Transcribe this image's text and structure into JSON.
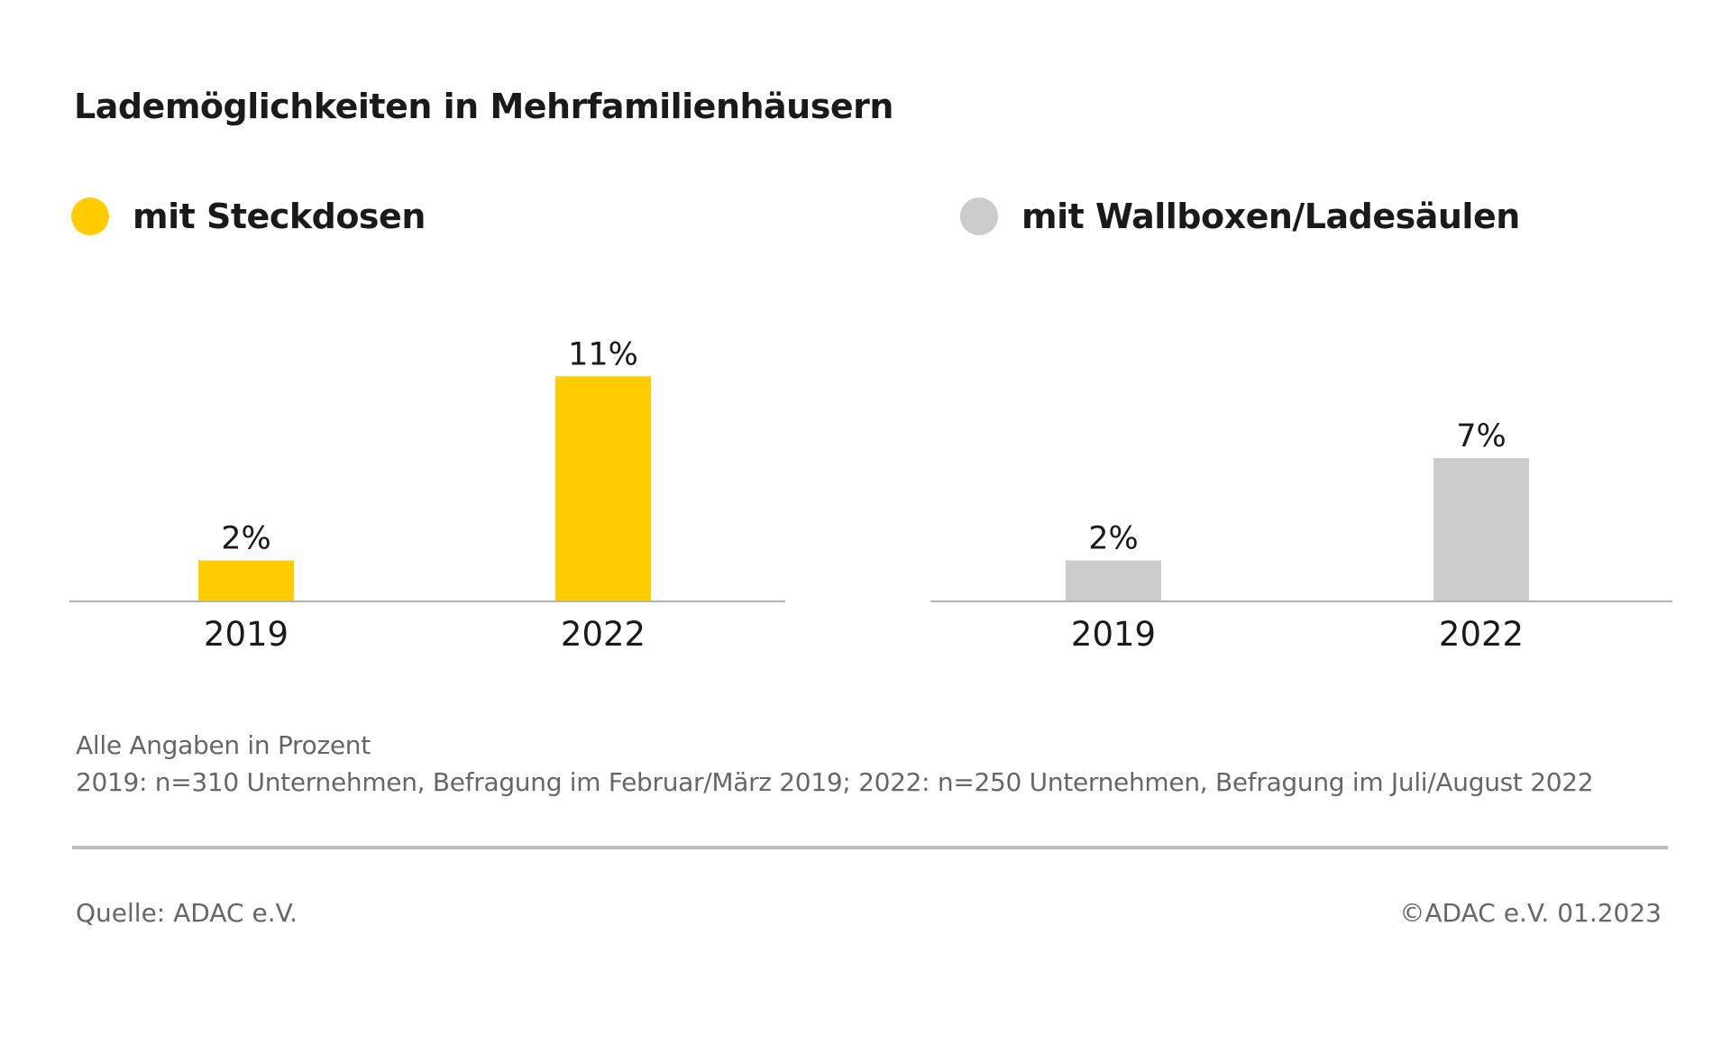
{
  "title": "Lademöglichkeiten in Mehrfamilienhäusern",
  "chart_data": [
    {
      "type": "bar",
      "series_name": "mit Steckdosen",
      "color": "#FFCC00",
      "categories": [
        "2019",
        "2022"
      ],
      "values": [
        2,
        11
      ],
      "value_labels": [
        "2%",
        "11%"
      ],
      "ylim": [
        0,
        14
      ],
      "grid": false
    },
    {
      "type": "bar",
      "series_name": "mit Wallboxen/Ladesäulen",
      "color": "#CCCCCC",
      "categories": [
        "2019",
        "2022"
      ],
      "values": [
        2,
        7
      ],
      "value_labels": [
        "2%",
        "7%"
      ],
      "ylim": [
        0,
        14
      ],
      "grid": false
    }
  ],
  "notes": {
    "line1": "Alle Angaben in Prozent",
    "line2": "2019: n=310 Unternehmen, Befragung im Februar/März 2019; 2022: n=250 Unternehmen, Befragung im Juli/August 2022"
  },
  "source": "Quelle: ADAC e.V.",
  "copyright": "©ADAC e.V.  01.2023"
}
